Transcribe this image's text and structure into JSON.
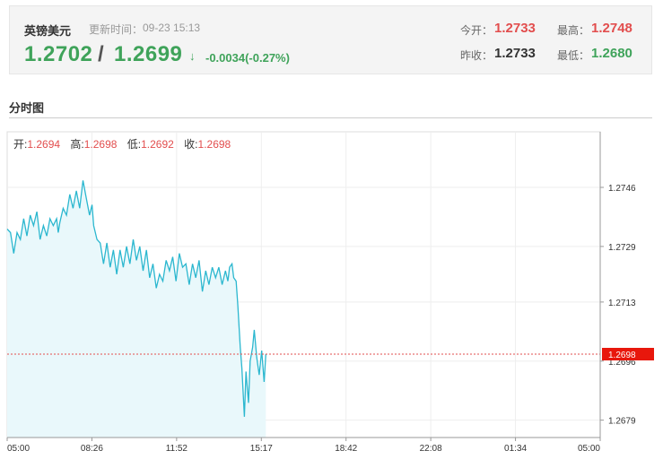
{
  "quote": {
    "name": "英镑美元",
    "time_label": "更新时间：",
    "time": "09-23 15:13",
    "bid": "1.2702",
    "slash": "/",
    "ask": "1.2699",
    "arrow": "↓",
    "change": "-0.0034(-0.27%)",
    "open_label": "今开：",
    "open": "1.2733",
    "high_label": "最高：",
    "high": "1.2748",
    "prev_close_label": "昨收：",
    "prev_close": "1.2733",
    "low_label": "最低：",
    "low": "1.2680"
  },
  "section_title": "分时图",
  "ohlc": {
    "open_label": "开:",
    "open": "1.2694",
    "high_label": "高:",
    "high": "1.2698",
    "low_label": "低:",
    "low": "1.2692",
    "close_label": "收:",
    "close": "1.2698"
  },
  "colors": {
    "line": "#2bb7cf",
    "fill": "#e9f8fb",
    "up": "#e24e4e",
    "down": "#3fa35a",
    "current_bg": "#e8170c"
  },
  "chart_data": {
    "type": "area",
    "x_ticks": [
      "05:00",
      "08:26",
      "11:52",
      "15:17",
      "18:42",
      "22:08",
      "01:34",
      "05:00"
    ],
    "y_ticks": [
      1.2746,
      1.2729,
      1.2713,
      1.2696,
      1.2679
    ],
    "ylim": [
      1.2674,
      1.2762
    ],
    "current_price": 1.2698,
    "current_label": "1.2698",
    "x_unit": "minutes since 05:00",
    "x_max": 1440,
    "series": [
      {
        "x": [
          0,
          8,
          16,
          24,
          32,
          40,
          48,
          56,
          64,
          72,
          80,
          88,
          96,
          104,
          112,
          120,
          124,
          128,
          136,
          144,
          152,
          160,
          168,
          176,
          184,
          192,
          200,
          206,
          210,
          218,
          226,
          234,
          242,
          250,
          258,
          266,
          274,
          282,
          290,
          298,
          306,
          314,
          322,
          330,
          338,
          346,
          354,
          362,
          370,
          378,
          386,
          394,
          402,
          410,
          418,
          426,
          434,
          442,
          450,
          458,
          466,
          474,
          482,
          490,
          498,
          506,
          514,
          522,
          530,
          536,
          540,
          546,
          550,
          556,
          560,
          566,
          570,
          576,
          580,
          586,
          590,
          596,
          600,
          606,
          612,
          618,
          624,
          628
        ],
        "y": [
          1.2734,
          1.2733,
          1.2727,
          1.2733,
          1.2731,
          1.2737,
          1.2732,
          1.2738,
          1.2735,
          1.2739,
          1.2731,
          1.2735,
          1.2732,
          1.2737,
          1.2735,
          1.2737,
          1.2733,
          1.2736,
          1.274,
          1.2738,
          1.2744,
          1.274,
          1.2745,
          1.274,
          1.2748,
          1.2743,
          1.2738,
          1.2741,
          1.2735,
          1.2731,
          1.273,
          1.2724,
          1.273,
          1.2723,
          1.2728,
          1.2721,
          1.2728,
          1.2723,
          1.2729,
          1.2724,
          1.2731,
          1.2725,
          1.2729,
          1.2722,
          1.2728,
          1.272,
          1.2724,
          1.2717,
          1.2721,
          1.2719,
          1.2725,
          1.2722,
          1.2726,
          1.2719,
          1.2727,
          1.2723,
          1.2724,
          1.2718,
          1.2724,
          1.272,
          1.2725,
          1.2716,
          1.2722,
          1.2718,
          1.2723,
          1.272,
          1.2723,
          1.2718,
          1.2722,
          1.2719,
          1.2723,
          1.2724,
          1.272,
          1.2719,
          1.2712,
          1.27,
          1.2694,
          1.268,
          1.2693,
          1.2684,
          1.2696,
          1.27,
          1.2705,
          1.2697,
          1.2692,
          1.2699,
          1.269,
          1.2698
        ]
      }
    ]
  }
}
